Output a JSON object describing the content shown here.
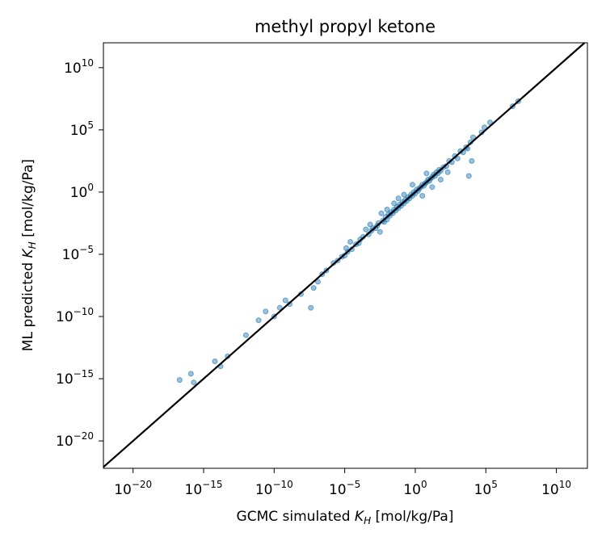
{
  "chart_data": {
    "type": "scatter",
    "title": "methyl propyl ketone",
    "xlabel": {
      "prefix": "GCMC simulated ",
      "var": "K",
      "sub": "H",
      "suffix": " [mol/kg/Pa]"
    },
    "ylabel": {
      "prefix": "ML predicted ",
      "var": "K",
      "sub": "H",
      "suffix": " [mol/kg/Pa]"
    },
    "xscale": "log",
    "yscale": "log",
    "xlim_log10": [
      -22.1,
      12.2
    ],
    "ylim_log10": [
      -22.2,
      12.0
    ],
    "xticks": [
      {
        "base": "10",
        "exp": "−20",
        "log10": -20
      },
      {
        "base": "10",
        "exp": "−15",
        "log10": -15
      },
      {
        "base": "10",
        "exp": "−10",
        "log10": -10
      },
      {
        "base": "10",
        "exp": "−5",
        "log10": -5
      },
      {
        "base": "10",
        "exp": "0",
        "log10": 0
      },
      {
        "base": "10",
        "exp": "5",
        "log10": 5
      },
      {
        "base": "10",
        "exp": "10",
        "log10": 10
      }
    ],
    "yticks": [
      {
        "base": "10",
        "exp": "−20",
        "log10": -20
      },
      {
        "base": "10",
        "exp": "−15",
        "log10": -15
      },
      {
        "base": "10",
        "exp": "−10",
        "log10": -10
      },
      {
        "base": "10",
        "exp": "−5",
        "log10": -5
      },
      {
        "base": "10",
        "exp": "0",
        "log10": 0
      },
      {
        "base": "10",
        "exp": "5",
        "log10": 5
      },
      {
        "base": "10",
        "exp": "10",
        "log10": 10
      }
    ],
    "grid": false,
    "reference_line": "y = x",
    "colors": {
      "points": "#1f77b4",
      "line": "#000000"
    },
    "series": [
      {
        "log10_points": [
          [
            -16.7,
            -15.1
          ],
          [
            -15.9,
            -14.6
          ],
          [
            -15.7,
            -15.3
          ],
          [
            -14.2,
            -13.6
          ],
          [
            -13.8,
            -14.0
          ],
          [
            -13.3,
            -13.2
          ],
          [
            -12.0,
            -11.5
          ],
          [
            -11.1,
            -10.3
          ],
          [
            -10.6,
            -9.6
          ],
          [
            -10.0,
            -10.0
          ],
          [
            -9.6,
            -9.3
          ],
          [
            -9.2,
            -8.7
          ],
          [
            -8.9,
            -9.0
          ],
          [
            -8.1,
            -8.2
          ],
          [
            -7.4,
            -9.3
          ],
          [
            -7.2,
            -7.7
          ],
          [
            -6.9,
            -7.2
          ],
          [
            -6.6,
            -6.6
          ],
          [
            -6.3,
            -6.3
          ],
          [
            -5.8,
            -5.7
          ],
          [
            -5.5,
            -5.5
          ],
          [
            -5.2,
            -5.2
          ],
          [
            -5.0,
            -5.1
          ],
          [
            -4.8,
            -4.8
          ],
          [
            -4.5,
            -4.6
          ],
          [
            -4.6,
            -4.0
          ],
          [
            -4.2,
            -4.2
          ],
          [
            -4.0,
            -4.1
          ],
          [
            -3.7,
            -3.6
          ],
          [
            -3.9,
            -3.8
          ],
          [
            -3.3,
            -3.4
          ],
          [
            -3.1,
            -3.1
          ],
          [
            -3.0,
            -2.9
          ],
          [
            -2.8,
            -2.9
          ],
          [
            -2.7,
            -2.7
          ],
          [
            -2.6,
            -2.5
          ],
          [
            -2.5,
            -3.2
          ],
          [
            -2.3,
            -2.3
          ],
          [
            -2.2,
            -2.4
          ],
          [
            -2.1,
            -2.0
          ],
          [
            -2.0,
            -2.2
          ],
          [
            -1.9,
            -1.8
          ],
          [
            -1.8,
            -1.9
          ],
          [
            -1.7,
            -1.6
          ],
          [
            -1.6,
            -1.7
          ],
          [
            -1.5,
            -1.4
          ],
          [
            -1.4,
            -1.5
          ],
          [
            -1.3,
            -1.2
          ],
          [
            -1.2,
            -1.3
          ],
          [
            -1.1,
            -1.0
          ],
          [
            -1.0,
            -1.1
          ],
          [
            -0.9,
            -0.8
          ],
          [
            -0.8,
            -0.9
          ],
          [
            -0.7,
            -0.6
          ],
          [
            -0.6,
            -0.7
          ],
          [
            -0.5,
            -0.4
          ],
          [
            -0.4,
            -0.5
          ],
          [
            -0.3,
            -0.2
          ],
          [
            -0.2,
            -0.3
          ],
          [
            -0.1,
            0.0
          ],
          [
            0.0,
            -0.1
          ],
          [
            0.1,
            0.2
          ],
          [
            0.2,
            0.1
          ],
          [
            0.3,
            0.3
          ],
          [
            0.4,
            0.4
          ],
          [
            0.5,
            0.6
          ],
          [
            0.6,
            0.5
          ],
          [
            0.7,
            0.7
          ],
          [
            0.8,
            0.8
          ],
          [
            0.9,
            1.0
          ],
          [
            1.0,
            0.9
          ],
          [
            1.1,
            1.1
          ],
          [
            1.2,
            1.2
          ],
          [
            1.3,
            1.4
          ],
          [
            1.4,
            1.3
          ],
          [
            1.5,
            1.6
          ],
          [
            1.6,
            1.5
          ],
          [
            1.7,
            1.8
          ],
          [
            1.8,
            1.7
          ],
          [
            2.0,
            2.0
          ],
          [
            2.2,
            2.1
          ],
          [
            2.4,
            2.5
          ],
          [
            2.6,
            2.4
          ],
          [
            2.8,
            2.9
          ],
          [
            3.0,
            2.7
          ],
          [
            3.2,
            3.3
          ],
          [
            3.4,
            3.2
          ],
          [
            3.6,
            3.6
          ],
          [
            3.7,
            3.5
          ],
          [
            3.9,
            4.0
          ],
          [
            4.1,
            4.4
          ],
          [
            4.0,
            2.5
          ],
          [
            3.8,
            1.3
          ],
          [
            -0.8,
            -0.2
          ],
          [
            -1.5,
            -0.9
          ],
          [
            0.8,
            1.5
          ],
          [
            1.2,
            0.4
          ],
          [
            -2.0,
            -1.4
          ],
          [
            -3.5,
            -3.0
          ],
          [
            0.5,
            -0.3
          ],
          [
            1.8,
            1.0
          ],
          [
            4.7,
            4.8
          ],
          [
            4.9,
            5.2
          ],
          [
            5.3,
            5.6
          ],
          [
            6.9,
            6.9
          ],
          [
            7.3,
            7.3
          ],
          [
            -0.2,
            0.6
          ],
          [
            -1.2,
            -0.5
          ],
          [
            2.3,
            1.6
          ],
          [
            -4.9,
            -4.5
          ],
          [
            -3.2,
            -2.6
          ],
          [
            -2.4,
            -1.7
          ]
        ]
      }
    ]
  }
}
